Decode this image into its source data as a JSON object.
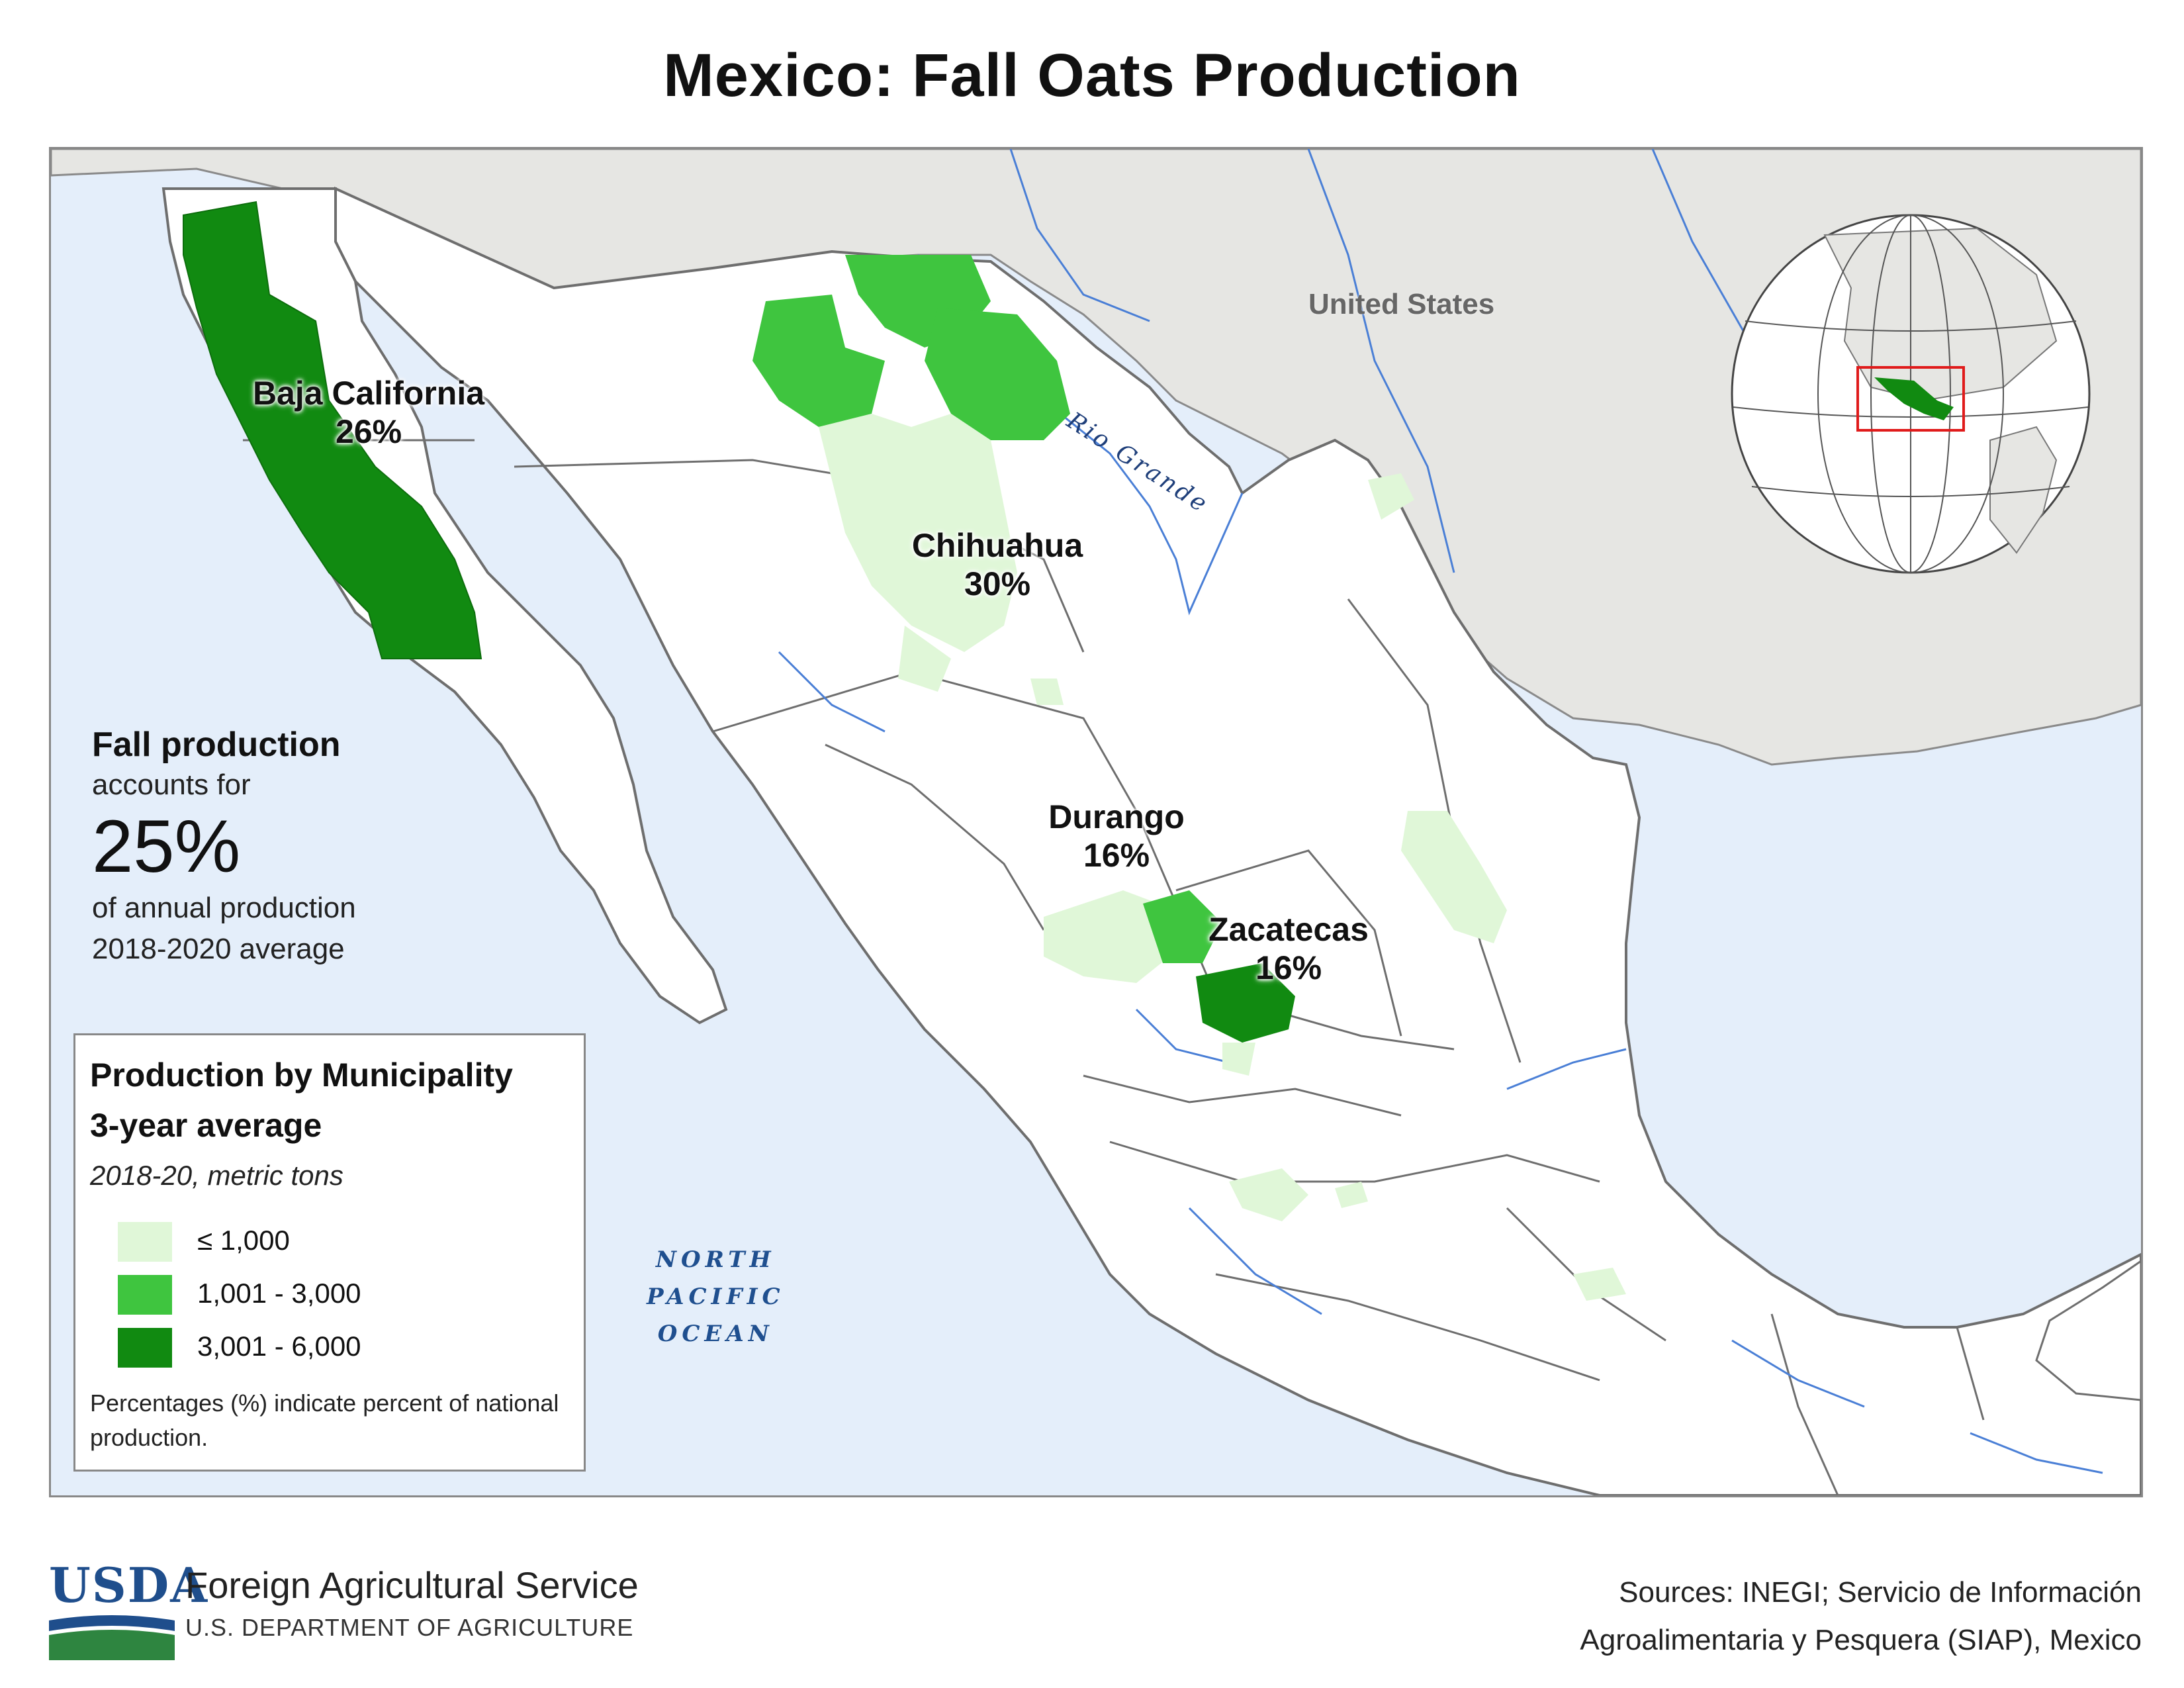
{
  "title": "Mexico: Fall Oats Production",
  "labels": {
    "united_states": "United States",
    "river": "Rio Grande",
    "ocean": [
      "NORTH",
      "PACIFIC",
      "OCEAN"
    ]
  },
  "states": [
    {
      "name": "Baja California",
      "percent": "26%"
    },
    {
      "name": "Chihuahua",
      "percent": "30%"
    },
    {
      "name": "Durango",
      "percent": "16%"
    },
    {
      "name": "Zacatecas",
      "percent": "16%"
    }
  ],
  "summary": {
    "heading": "Fall production",
    "line1": "accounts for",
    "big": "25%",
    "line2": "of annual production",
    "line3": "2018-2020 average"
  },
  "legend": {
    "title": [
      "Production by Municipality",
      "3-year average"
    ],
    "subtitle": "2018-20, metric tons",
    "classes": [
      {
        "label": "≤ 1,000",
        "color": "#e0f7d8"
      },
      {
        "label": "1,001 - 3,000",
        "color": "#3fc53f"
      },
      {
        "label": "3,001 - 6,000",
        "color": "#118a11"
      }
    ],
    "note": "Percentages (%) indicate percent of national production."
  },
  "colors": {
    "ocean": "#e4eefa",
    "foreign_land": "#e6e6e3",
    "mexico_land": "#ffffff",
    "rivers": "#4a7fd6",
    "borders": "#6e6e6e",
    "locator_box": "#e01b1b"
  },
  "footer": {
    "usda": "USDA",
    "agency": "Foreign Agricultural Service",
    "department": "U.S. DEPARTMENT OF AGRICULTURE",
    "sources": [
      "Sources: INEGI; Servicio de Información",
      "Agroalimentaria y Pesquera (SIAP), Mexico"
    ]
  }
}
